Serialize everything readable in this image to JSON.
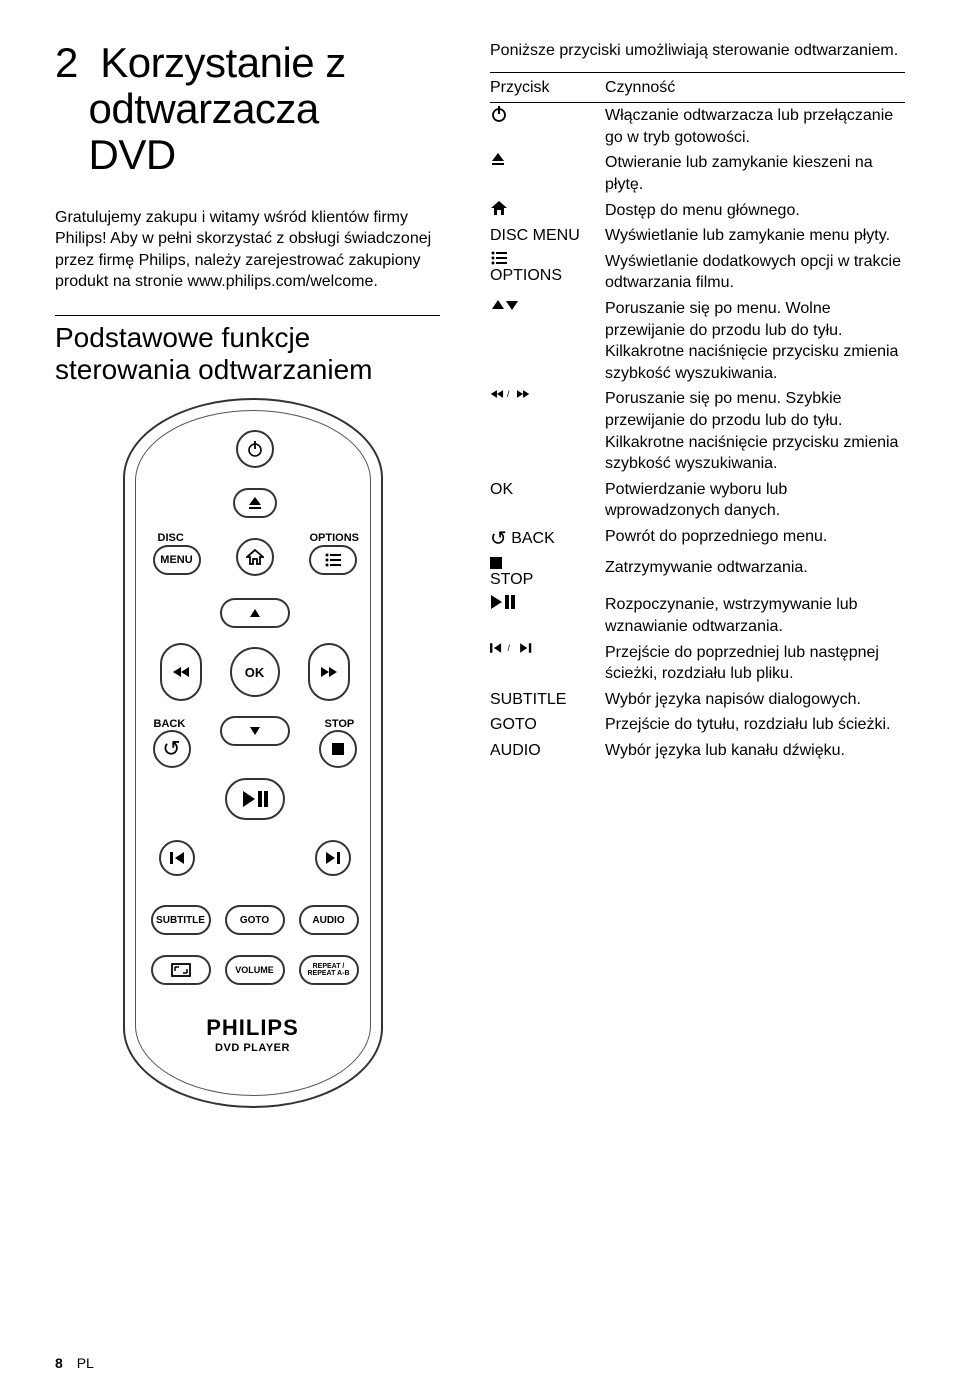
{
  "page": {
    "num": "8",
    "lang": "PL",
    "title_num": "2",
    "title_line1": "Korzystanie z",
    "title_line2": "odtwarzacza",
    "title_line3": "DVD",
    "intro": "Gratulujemy zakupu i witamy wśród klientów firmy Philips! Aby w pełni skorzystać z obsługi świadczonej przez firmę Philips, należy zarejestrować zakupiony produkt na stronie www.philips.com/welcome.",
    "section_heading_l1": "Podstawowe funkcje",
    "section_heading_l2": "sterowania odtwarzaniem"
  },
  "remote": {
    "labels": {
      "disc": "DISC",
      "menu": "MENU",
      "options": "OPTIONS",
      "ok": "OK",
      "back": "BACK",
      "stop": "STOP",
      "subtitle": "SUBTITLE",
      "goto": "GOTO",
      "audio": "AUDIO",
      "volume": "VOLUME",
      "repeat1": "REPEAT /",
      "repeat2": "REPEAT A-B",
      "brand": "PHILIPS",
      "player": "DVD PLAYER"
    }
  },
  "right": {
    "intro": "Poniższe przyciski umożliwiają sterowanie odtwarzaniem.",
    "th1": "Przycisk",
    "th2": "Czynność",
    "rows": [
      {
        "k": "power",
        "v": "Włączanie odtwarzacza lub przełączanie go w tryb gotowości."
      },
      {
        "k": "eject",
        "v": "Otwieranie lub zamykanie kieszeni na płytę."
      },
      {
        "k": "home",
        "v": "Dostęp do menu głównego."
      },
      {
        "k": "DISC MENU",
        "v": "Wyświetlanie lub zamykanie menu płyty."
      },
      {
        "k": "options",
        "v": "Wyświetlanie dodatkowych opcji w trakcie odtwarzania filmu.",
        "label": "OPTIONS"
      },
      {
        "k": "updown",
        "v": "Poruszanie się po menu. Wolne przewijanie do przodu lub do tyłu. Kilkakrotne naciśnięcie przycisku zmienia szybkość wyszukiwania."
      },
      {
        "k": "rewff",
        "v": "Poruszanie się po menu. Szybkie przewijanie do przodu lub do tyłu. Kilkakrotne naciśnięcie przycisku zmienia szybkość wyszukiwania."
      },
      {
        "k": "OK",
        "v": "Potwierdzanie wyboru lub wprowadzonych danych."
      },
      {
        "k": "back",
        "v": "Powrót do poprzedniego menu.",
        "label": "BACK"
      },
      {
        "k": "stop",
        "v": "Zatrzymywanie odtwarzania.",
        "label": "STOP"
      },
      {
        "k": "playpause",
        "v": "Rozpoczynanie, wstrzymywanie lub wznawianie odtwarzania."
      },
      {
        "k": "prevnext",
        "v": "Przejście do poprzedniej lub następnej ścieżki, rozdziału lub pliku."
      },
      {
        "k": "SUBTITLE",
        "v": "Wybór języka napisów dialogowych."
      },
      {
        "k": "GOTO",
        "v": "Przejście do tytułu, rozdziału lub ścieżki."
      },
      {
        "k": "AUDIO",
        "v": "Wybór języka lub kanału dźwięku."
      }
    ]
  }
}
